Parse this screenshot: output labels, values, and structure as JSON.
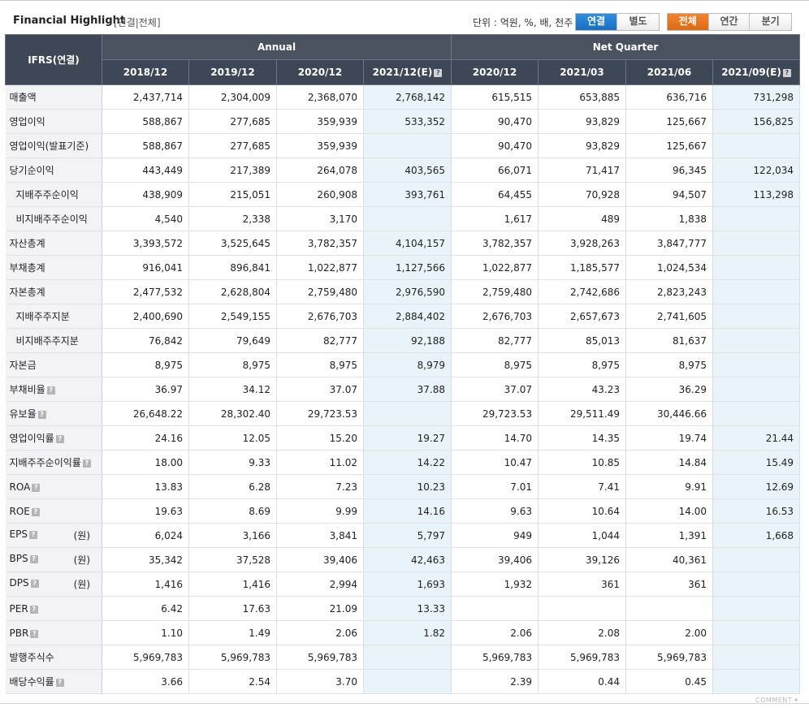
{
  "header": {
    "title": "Financial Highlight",
    "subtitle": "[연결|전체]",
    "unit_text": "단위 : 억원, %, 배, 천주"
  },
  "toggle_consolidation": [
    {
      "label": "연결",
      "active": true
    },
    {
      "label": "별도",
      "active": false
    }
  ],
  "toggle_period": [
    {
      "label": "전체",
      "active": true
    },
    {
      "label": "연간",
      "active": false
    },
    {
      "label": "분기",
      "active": false
    }
  ],
  "table": {
    "corner_label": "IFRS(연결)",
    "group_headers": [
      "Annual",
      "Net Quarter"
    ],
    "columns": [
      "2018/12",
      "2019/12",
      "2020/12",
      "2021/12(E)",
      "2020/12",
      "2021/03",
      "2021/06",
      "2021/09(E)"
    ],
    "estimate_columns": [
      3,
      7
    ],
    "rows": [
      {
        "label": "매출액",
        "values": [
          "2,437,714",
          "2,304,009",
          "2,368,070",
          "2,768,142",
          "615,515",
          "653,885",
          "636,716",
          "731,298"
        ]
      },
      {
        "label": "영업이익",
        "values": [
          "588,867",
          "277,685",
          "359,939",
          "533,352",
          "90,470",
          "93,829",
          "125,667",
          "156,825"
        ]
      },
      {
        "label": "영업이익(발표기준)",
        "values": [
          "588,867",
          "277,685",
          "359,939",
          "",
          "90,470",
          "93,829",
          "125,667",
          ""
        ]
      },
      {
        "label": "당기순이익",
        "values": [
          "443,449",
          "217,389",
          "264,078",
          "403,565",
          "66,071",
          "71,417",
          "96,345",
          "122,034"
        ]
      },
      {
        "label": "지배주주순이익",
        "sub": true,
        "values": [
          "438,909",
          "215,051",
          "260,908",
          "393,761",
          "64,455",
          "70,928",
          "94,507",
          "113,298"
        ]
      },
      {
        "label": "비지배주주순이익",
        "sub": true,
        "values": [
          "4,540",
          "2,338",
          "3,170",
          "",
          "1,617",
          "489",
          "1,838",
          ""
        ]
      },
      {
        "label": "자산총계",
        "values": [
          "3,393,572",
          "3,525,645",
          "3,782,357",
          "4,104,157",
          "3,782,357",
          "3,928,263",
          "3,847,777",
          ""
        ]
      },
      {
        "label": "부채총계",
        "values": [
          "916,041",
          "896,841",
          "1,022,877",
          "1,127,566",
          "1,022,877",
          "1,185,577",
          "1,024,534",
          ""
        ]
      },
      {
        "label": "자본총계",
        "values": [
          "2,477,532",
          "2,628,804",
          "2,759,480",
          "2,976,590",
          "2,759,480",
          "2,742,686",
          "2,823,243",
          ""
        ]
      },
      {
        "label": "지배주주지분",
        "sub": true,
        "values": [
          "2,400,690",
          "2,549,155",
          "2,676,703",
          "2,884,402",
          "2,676,703",
          "2,657,673",
          "2,741,605",
          ""
        ]
      },
      {
        "label": "비지배주주지분",
        "sub": true,
        "values": [
          "76,842",
          "79,649",
          "82,777",
          "92,188",
          "82,777",
          "85,013",
          "81,637",
          ""
        ]
      },
      {
        "label": "자본금",
        "values": [
          "8,975",
          "8,975",
          "8,975",
          "8,979",
          "8,975",
          "8,975",
          "8,975",
          ""
        ]
      },
      {
        "label": "부채비율",
        "help": true,
        "values": [
          "36.97",
          "34.12",
          "37.07",
          "37.88",
          "37.07",
          "43.23",
          "36.29",
          ""
        ]
      },
      {
        "label": "유보율",
        "help": true,
        "values": [
          "26,648.22",
          "28,302.40",
          "29,723.53",
          "",
          "29,723.53",
          "29,511.49",
          "30,446.66",
          ""
        ]
      },
      {
        "label": "영업이익률",
        "help": true,
        "values": [
          "24.16",
          "12.05",
          "15.20",
          "19.27",
          "14.70",
          "14.35",
          "19.74",
          "21.44"
        ]
      },
      {
        "label": "지배주주순이익률",
        "help": true,
        "values": [
          "18.00",
          "9.33",
          "11.02",
          "14.22",
          "10.47",
          "10.85",
          "14.84",
          "15.49"
        ]
      },
      {
        "label": "ROA",
        "help": true,
        "values": [
          "13.83",
          "6.28",
          "7.23",
          "10.23",
          "7.01",
          "7.41",
          "9.91",
          "12.69"
        ]
      },
      {
        "label": "ROE",
        "help": true,
        "values": [
          "19.63",
          "8.69",
          "9.99",
          "14.16",
          "9.63",
          "10.64",
          "14.00",
          "16.53"
        ]
      },
      {
        "label": "EPS",
        "help": true,
        "unit": "(원)",
        "values": [
          "6,024",
          "3,166",
          "3,841",
          "5,797",
          "949",
          "1,044",
          "1,391",
          "1,668"
        ]
      },
      {
        "label": "BPS",
        "help": true,
        "unit": "(원)",
        "values": [
          "35,342",
          "37,528",
          "39,406",
          "42,463",
          "39,406",
          "39,126",
          "40,361",
          ""
        ]
      },
      {
        "label": "DPS",
        "help": true,
        "unit": "(원)",
        "values": [
          "1,416",
          "1,416",
          "2,994",
          "1,693",
          "1,932",
          "361",
          "361",
          ""
        ]
      },
      {
        "label": "PER",
        "help": true,
        "values": [
          "6.42",
          "17.63",
          "21.09",
          "13.33",
          "",
          "",
          "",
          ""
        ]
      },
      {
        "label": "PBR",
        "help": true,
        "values": [
          "1.10",
          "1.49",
          "2.06",
          "1.82",
          "2.06",
          "2.08",
          "2.00",
          ""
        ]
      },
      {
        "label": "발행주식수",
        "values": [
          "5,969,783",
          "5,969,783",
          "5,969,783",
          "",
          "5,969,783",
          "5,969,783",
          "5,969,783",
          ""
        ]
      },
      {
        "label": "배당수익률",
        "help": true,
        "values": [
          "3.66",
          "2.54",
          "3.70",
          "",
          "2.39",
          "0.44",
          "0.45",
          ""
        ]
      }
    ]
  },
  "footer": {
    "comment_label": "COMMENT ▾"
  },
  "icons": {
    "help": "question-mark-icon"
  },
  "colors": {
    "header_bg": "#4a5260",
    "estimate_bg": "#e8f4fa",
    "accent_blue": "#1a6fc1",
    "accent_orange": "#dd6a15"
  }
}
